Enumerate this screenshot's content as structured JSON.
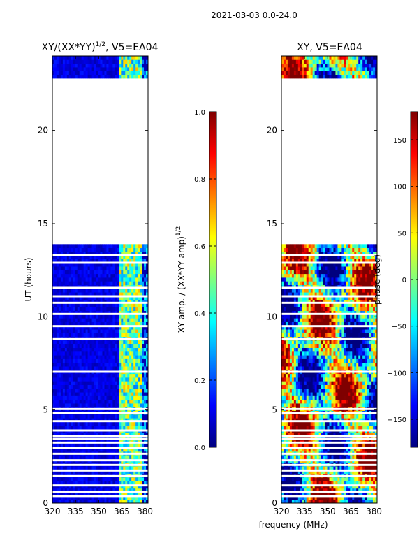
{
  "figure": {
    "suptitle": "2021-03-03 0.0-24.0",
    "xlabel": "frequency (MHz)"
  },
  "colors": {
    "jet": [
      "#00007f",
      "#0000ff",
      "#007fff",
      "#00ffff",
      "#7fff7f",
      "#ffff00",
      "#ff7f00",
      "#ff0000",
      "#7f0000"
    ]
  },
  "chart_data": [
    {
      "type": "heatmap",
      "title_prefix": "XY/(XX*YY)",
      "title_exp": "1/2",
      "title_suffix": ", V5=EA04",
      "ylabel": "UT (hours)",
      "xlim": [
        320,
        382
      ],
      "ylim": [
        0,
        24
      ],
      "xticks": [
        320,
        335,
        350,
        365,
        380
      ],
      "yticks": [
        0,
        5,
        10,
        15,
        20
      ],
      "colorbar": {
        "label_prefix": "XY amp. / (XX*YY amp)",
        "label_exp": "1/2",
        "range": [
          0.0,
          1.0
        ],
        "ticks": [
          "0.0",
          "0.2",
          "0.4",
          "0.6",
          "0.8",
          "1.0"
        ]
      },
      "data_hours": [
        [
          0.0,
          13.9
        ],
        [
          22.8,
          24.0
        ]
      ],
      "gap_hours": [
        0.38,
        0.62,
        0.95,
        1.45,
        1.75,
        2.05,
        2.3,
        2.65,
        2.95,
        3.25,
        3.45,
        3.6,
        3.9,
        4.4,
        4.85,
        5.05,
        7.05,
        8.8,
        9.5,
        10.15,
        10.75,
        11.1,
        11.55,
        12.9,
        13.3
      ]
    },
    {
      "type": "heatmap",
      "title_prefix": "XY, V5=EA04",
      "ylabel": "",
      "xlim": [
        320,
        382
      ],
      "ylim": [
        0,
        24
      ],
      "xticks": [
        320,
        335,
        350,
        365,
        380
      ],
      "yticks": [
        0,
        5,
        10,
        15,
        20
      ],
      "colorbar": {
        "label_prefix": "phase (deg)",
        "range": [
          -180,
          180
        ],
        "ticks": [
          "−150",
          "−100",
          "−50",
          "0",
          "50",
          "100",
          "150"
        ]
      },
      "data_hours": [
        [
          0.0,
          13.9
        ],
        [
          22.8,
          24.0
        ]
      ],
      "gap_hours": [
        0.38,
        0.62,
        0.95,
        1.45,
        1.75,
        2.05,
        2.3,
        2.65,
        2.95,
        3.25,
        3.45,
        3.6,
        3.9,
        4.4,
        4.85,
        5.05,
        7.05,
        8.8,
        9.5,
        10.15,
        10.75,
        11.1,
        11.55,
        12.9,
        13.3
      ]
    }
  ]
}
